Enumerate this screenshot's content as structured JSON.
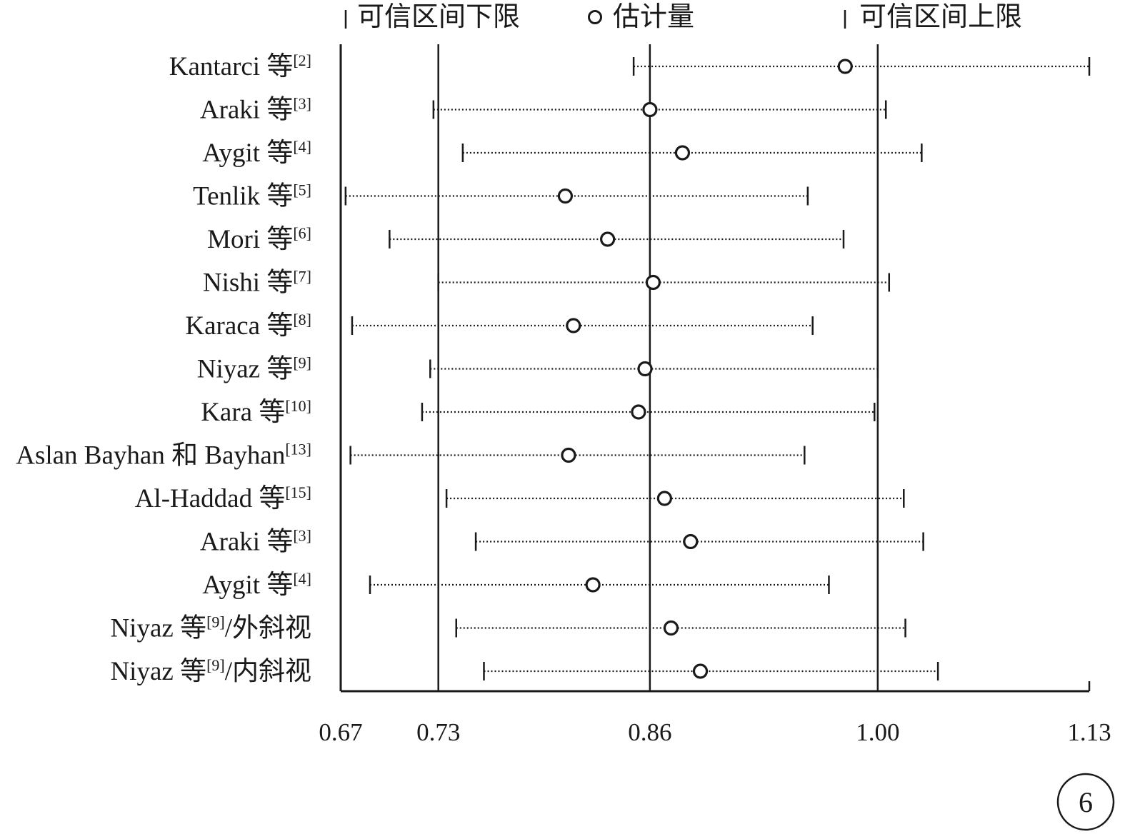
{
  "chart_data": {
    "type": "forest",
    "legend": {
      "lower_label": "可信区间下限",
      "estimate_label": "估计量",
      "upper_label": "可信区间上限"
    },
    "x_ticks": [
      "0.67",
      "0.73",
      "0.86",
      "1.00",
      "1.13"
    ],
    "x_tick_values": [
      0.67,
      0.73,
      0.86,
      1.0,
      1.13
    ],
    "xlim": [
      0.67,
      1.13
    ],
    "reference_lines": [
      0.73,
      0.86,
      1.0
    ],
    "studies": [
      {
        "name": "Kantarci 等",
        "ref": "[2]",
        "suffix": "",
        "lower": 0.85,
        "estimate": 0.98,
        "upper": 1.13
      },
      {
        "name": "Araki 等",
        "ref": "[3]",
        "suffix": "",
        "lower": 0.727,
        "estimate": 0.86,
        "upper": 1.005
      },
      {
        "name": "Aygit 等",
        "ref": "[4]",
        "suffix": "",
        "lower": 0.745,
        "estimate": 0.88,
        "upper": 1.027
      },
      {
        "name": "Tenlik 等",
        "ref": "[5]",
        "suffix": "",
        "lower": 0.673,
        "estimate": 0.808,
        "upper": 0.957
      },
      {
        "name": "Mori 等",
        "ref": "[6]",
        "suffix": "",
        "lower": 0.7,
        "estimate": 0.834,
        "upper": 0.979
      },
      {
        "name": "Nishi 等",
        "ref": "[7]",
        "suffix": "",
        "lower": 0.73,
        "estimate": 0.862,
        "upper": 1.007
      },
      {
        "name": "Karaca 等",
        "ref": "[8]",
        "suffix": "",
        "lower": 0.677,
        "estimate": 0.813,
        "upper": 0.96
      },
      {
        "name": "Niyaz 等",
        "ref": "[9]",
        "suffix": "",
        "lower": 0.725,
        "estimate": 0.857,
        "upper": 1.0
      },
      {
        "name": "Kara 等",
        "ref": "[10]",
        "suffix": "",
        "lower": 0.72,
        "estimate": 0.853,
        "upper": 0.998
      },
      {
        "name": "Aslan Bayhan 和 Bayhan",
        "ref": "[13]",
        "suffix": "",
        "lower": 0.676,
        "estimate": 0.81,
        "upper": 0.955
      },
      {
        "name": "Al-Haddad 等",
        "ref": "[15]",
        "suffix": "",
        "lower": 0.735,
        "estimate": 0.869,
        "upper": 1.016
      },
      {
        "name": "Araki 等",
        "ref": "[3]",
        "suffix": "",
        "lower": 0.753,
        "estimate": 0.885,
        "upper": 1.028
      },
      {
        "name": "Aygit 等",
        "ref": "[4]",
        "suffix": "",
        "lower": 0.688,
        "estimate": 0.825,
        "upper": 0.97
      },
      {
        "name": "Niyaz 等",
        "ref": "[9]",
        "suffix": "/外斜视",
        "lower": 0.741,
        "estimate": 0.873,
        "upper": 1.017
      },
      {
        "name": "Niyaz 等",
        "ref": "[9]",
        "suffix": "/内斜视",
        "lower": 0.758,
        "estimate": 0.891,
        "upper": 1.037
      }
    ]
  },
  "badge": "6"
}
